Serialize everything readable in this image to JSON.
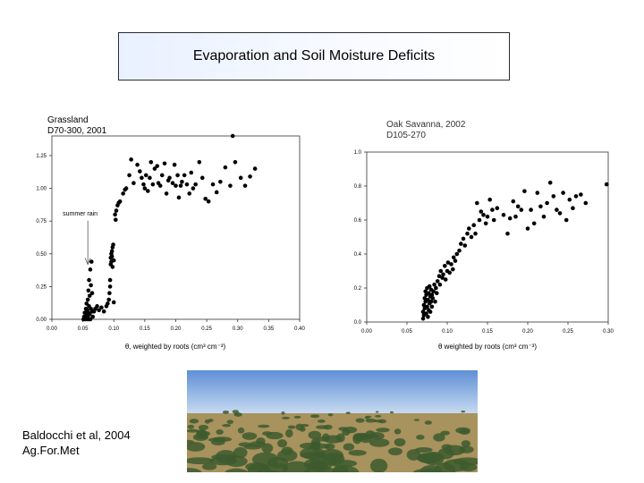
{
  "slide": {
    "title": "Evaporation and Soil Moisture Deficits",
    "citation_line1": "Baldocchi et al, 2004",
    "citation_line2": "Ag.For.Met"
  },
  "colors": {
    "sky_top": "#5f8fd6",
    "sky_bottom": "#cfe0f2",
    "tree": "#3d5a2e",
    "ground": "#a8925e",
    "marker": "#000000"
  },
  "chart_data": [
    {
      "type": "scatter",
      "title": "Grassland",
      "subtitle": "D70-300, 2001",
      "xlabel": "θ, weighted by roots (cm³ cm⁻³)",
      "ylabel": "",
      "xlim": [
        0,
        0.4
      ],
      "ylim": [
        0,
        1.4
      ],
      "xticks": [
        "0.00",
        "0.05",
        "0.10",
        "0.15",
        "0.20",
        "0.25",
        "0.30",
        "0.35",
        "0.40"
      ],
      "yticks": [
        "0.00",
        "0.25",
        "0.50",
        "0.75",
        "1.00",
        "1.25"
      ],
      "grid": false,
      "annotation": {
        "text": "summer rain",
        "x": 0.058,
        "y": 0.78,
        "target_x": 0.058,
        "target_y": 0.42
      },
      "points": [
        [
          0.051,
          0.0
        ],
        [
          0.052,
          0.02
        ],
        [
          0.053,
          0.05
        ],
        [
          0.054,
          0.0
        ],
        [
          0.055,
          0.08
        ],
        [
          0.056,
          0.03
        ],
        [
          0.056,
          0.12
        ],
        [
          0.057,
          0.0
        ],
        [
          0.057,
          0.07
        ],
        [
          0.058,
          0.02
        ],
        [
          0.058,
          0.15
        ],
        [
          0.059,
          0.05
        ],
        [
          0.059,
          0.22
        ],
        [
          0.06,
          0.0
        ],
        [
          0.06,
          0.1
        ],
        [
          0.06,
          0.3
        ],
        [
          0.061,
          0.04
        ],
        [
          0.061,
          0.18
        ],
        [
          0.062,
          0.38
        ],
        [
          0.062,
          0.0
        ],
        [
          0.063,
          0.26
        ],
        [
          0.063,
          0.08
        ],
        [
          0.064,
          0.44
        ],
        [
          0.065,
          0.06
        ],
        [
          0.065,
          0.2
        ],
        [
          0.066,
          0.02
        ],
        [
          0.068,
          0.06
        ],
        [
          0.07,
          0.08
        ],
        [
          0.073,
          0.1
        ],
        [
          0.076,
          0.07
        ],
        [
          0.08,
          0.09
        ],
        [
          0.084,
          0.06
        ],
        [
          0.088,
          0.1
        ],
        [
          0.09,
          0.12
        ],
        [
          0.092,
          0.15
        ],
        [
          0.093,
          0.2
        ],
        [
          0.094,
          0.25
        ],
        [
          0.094,
          0.3
        ],
        [
          0.095,
          0.42
        ],
        [
          0.095,
          0.47
        ],
        [
          0.096,
          0.5
        ],
        [
          0.096,
          0.44
        ],
        [
          0.097,
          0.52
        ],
        [
          0.097,
          0.48
        ],
        [
          0.098,
          0.55
        ],
        [
          0.098,
          0.4
        ],
        [
          0.099,
          0.57
        ],
        [
          0.1,
          0.45
        ],
        [
          0.1,
          0.13
        ],
        [
          0.102,
          0.8
        ],
        [
          0.103,
          0.76
        ],
        [
          0.104,
          0.83
        ],
        [
          0.106,
          0.87
        ],
        [
          0.108,
          0.89
        ],
        [
          0.11,
          0.9
        ],
        [
          0.115,
          0.96
        ],
        [
          0.118,
          0.99
        ],
        [
          0.12,
          1.0
        ],
        [
          0.125,
          1.1
        ],
        [
          0.128,
          1.22
        ],
        [
          0.132,
          1.04
        ],
        [
          0.138,
          1.18
        ],
        [
          0.142,
          1.13
        ],
        [
          0.145,
          1.08
        ],
        [
          0.148,
          1.03
        ],
        [
          0.15,
          1.0
        ],
        [
          0.152,
          1.1
        ],
        [
          0.155,
          0.98
        ],
        [
          0.158,
          1.08
        ],
        [
          0.16,
          1.2
        ],
        [
          0.163,
          1.03
        ],
        [
          0.166,
          1.15
        ],
        [
          0.17,
          1.17
        ],
        [
          0.172,
          1.04
        ],
        [
          0.175,
          1.02
        ],
        [
          0.178,
          1.1
        ],
        [
          0.182,
          1.19
        ],
        [
          0.185,
          0.96
        ],
        [
          0.188,
          1.06
        ],
        [
          0.19,
          1.08
        ],
        [
          0.195,
          1.04
        ],
        [
          0.198,
          1.18
        ],
        [
          0.2,
          1.02
        ],
        [
          0.203,
          1.1
        ],
        [
          0.205,
          0.93
        ],
        [
          0.208,
          1.02
        ],
        [
          0.21,
          1.05
        ],
        [
          0.214,
          1.1
        ],
        [
          0.218,
          1.03
        ],
        [
          0.222,
          0.96
        ],
        [
          0.225,
          1.12
        ],
        [
          0.228,
          1.0
        ],
        [
          0.232,
          1.03
        ],
        [
          0.238,
          1.2
        ],
        [
          0.243,
          1.08
        ],
        [
          0.248,
          0.92
        ],
        [
          0.253,
          0.9
        ],
        [
          0.26,
          1.03
        ],
        [
          0.266,
          0.97
        ],
        [
          0.272,
          1.05
        ],
        [
          0.28,
          1.16
        ],
        [
          0.288,
          1.02
        ],
        [
          0.292,
          1.4
        ],
        [
          0.296,
          1.2
        ],
        [
          0.305,
          1.08
        ],
        [
          0.312,
          1.02
        ],
        [
          0.32,
          1.09
        ],
        [
          0.328,
          1.15
        ]
      ]
    },
    {
      "type": "scatter",
      "title": "Oak Savanna, 2002",
      "subtitle": "D105-270",
      "xlabel": "θ weighted by roots (cm³ cm⁻³)",
      "ylabel": "",
      "xlim": [
        0,
        0.3
      ],
      "ylim": [
        0,
        1.0
      ],
      "xticks": [
        "0.00",
        "0.05",
        "0.10",
        "0.15",
        "0.20",
        "0.25",
        "0.30"
      ],
      "yticks": [
        "0.0",
        "0.2",
        "0.4",
        "0.6",
        "0.8",
        "1.0"
      ],
      "grid": false,
      "points": [
        [
          0.07,
          0.02
        ],
        [
          0.07,
          0.06
        ],
        [
          0.071,
          0.1
        ],
        [
          0.071,
          0.04
        ],
        [
          0.072,
          0.14
        ],
        [
          0.072,
          0.08
        ],
        [
          0.073,
          0.12
        ],
        [
          0.073,
          0.18
        ],
        [
          0.074,
          0.05
        ],
        [
          0.074,
          0.16
        ],
        [
          0.075,
          0.2
        ],
        [
          0.075,
          0.09
        ],
        [
          0.076,
          0.13
        ],
        [
          0.076,
          0.03
        ],
        [
          0.077,
          0.17
        ],
        [
          0.077,
          0.07
        ],
        [
          0.078,
          0.11
        ],
        [
          0.078,
          0.21
        ],
        [
          0.079,
          0.15
        ],
        [
          0.079,
          0.06
        ],
        [
          0.08,
          0.19
        ],
        [
          0.08,
          0.12
        ],
        [
          0.081,
          0.09
        ],
        [
          0.081,
          0.16
        ],
        [
          0.082,
          0.14
        ],
        [
          0.083,
          0.18
        ],
        [
          0.084,
          0.22
        ],
        [
          0.085,
          0.12
        ],
        [
          0.086,
          0.2
        ],
        [
          0.087,
          0.17
        ],
        [
          0.088,
          0.24
        ],
        [
          0.09,
          0.27
        ],
        [
          0.091,
          0.22
        ],
        [
          0.092,
          0.3
        ],
        [
          0.094,
          0.26
        ],
        [
          0.095,
          0.28
        ],
        [
          0.097,
          0.33
        ],
        [
          0.098,
          0.25
        ],
        [
          0.1,
          0.3
        ],
        [
          0.101,
          0.35
        ],
        [
          0.103,
          0.29
        ],
        [
          0.105,
          0.34
        ],
        [
          0.107,
          0.31
        ],
        [
          0.108,
          0.38
        ],
        [
          0.11,
          0.36
        ],
        [
          0.112,
          0.4
        ],
        [
          0.115,
          0.42
        ],
        [
          0.117,
          0.46
        ],
        [
          0.12,
          0.49
        ],
        [
          0.122,
          0.45
        ],
        [
          0.125,
          0.52
        ],
        [
          0.127,
          0.55
        ],
        [
          0.13,
          0.5
        ],
        [
          0.133,
          0.57
        ],
        [
          0.135,
          0.52
        ],
        [
          0.137,
          0.7
        ],
        [
          0.14,
          0.6
        ],
        [
          0.142,
          0.65
        ],
        [
          0.145,
          0.63
        ],
        [
          0.148,
          0.58
        ],
        [
          0.15,
          0.62
        ],
        [
          0.153,
          0.72
        ],
        [
          0.156,
          0.66
        ],
        [
          0.158,
          0.6
        ],
        [
          0.162,
          0.67
        ],
        [
          0.17,
          0.63
        ],
        [
          0.175,
          0.52
        ],
        [
          0.178,
          0.61
        ],
        [
          0.182,
          0.71
        ],
        [
          0.185,
          0.62
        ],
        [
          0.188,
          0.68
        ],
        [
          0.192,
          0.66
        ],
        [
          0.196,
          0.77
        ],
        [
          0.2,
          0.55
        ],
        [
          0.204,
          0.66
        ],
        [
          0.208,
          0.58
        ],
        [
          0.212,
          0.76
        ],
        [
          0.216,
          0.68
        ],
        [
          0.22,
          0.62
        ],
        [
          0.224,
          0.7
        ],
        [
          0.228,
          0.82
        ],
        [
          0.232,
          0.74
        ],
        [
          0.236,
          0.66
        ],
        [
          0.24,
          0.64
        ],
        [
          0.244,
          0.76
        ],
        [
          0.248,
          0.6
        ],
        [
          0.252,
          0.72
        ],
        [
          0.256,
          0.67
        ],
        [
          0.26,
          0.74
        ],
        [
          0.266,
          0.75
        ],
        [
          0.272,
          0.7
        ],
        [
          0.298,
          0.81
        ]
      ]
    }
  ]
}
